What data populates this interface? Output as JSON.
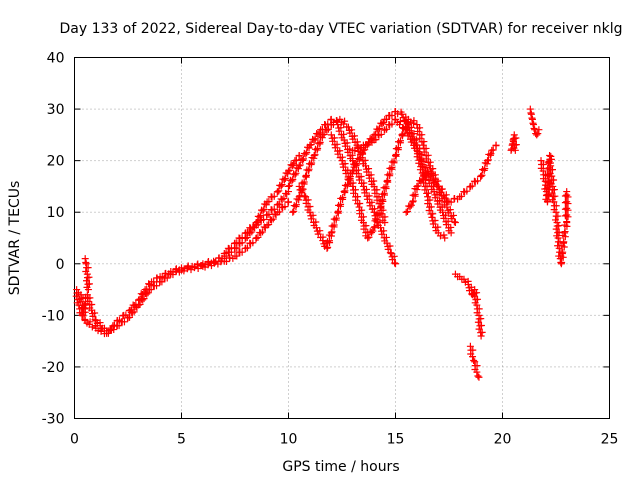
{
  "chart_data": {
    "type": "scatter",
    "title": "Day 133 of 2022, Sidereal Day-to-day VTEC variation (SDTVAR) for receiver nklg",
    "xlabel": "GPS time / hours",
    "ylabel": "SDTVAR / TECUs",
    "xlim": [
      0,
      25
    ],
    "ylim": [
      -30,
      40
    ],
    "xticks": [
      0,
      5,
      10,
      15,
      20,
      25
    ],
    "yticks": [
      -30,
      -20,
      -10,
      0,
      10,
      20,
      30,
      40
    ],
    "grid": true,
    "marker": "+",
    "color": "#ff0000",
    "series": [
      {
        "name": "main-trace",
        "points": [
          [
            0.1,
            -5
          ],
          [
            0.2,
            -8
          ],
          [
            0.35,
            -10
          ],
          [
            0.5,
            -8
          ],
          [
            0.6,
            -6
          ],
          [
            0.8,
            -9
          ],
          [
            1.0,
            -11
          ],
          [
            1.2,
            -12
          ],
          [
            1.4,
            -12.5
          ],
          [
            1.6,
            -13
          ],
          [
            1.8,
            -12
          ],
          [
            2.0,
            -11
          ],
          [
            2.3,
            -10
          ],
          [
            2.6,
            -9
          ],
          [
            3.0,
            -7
          ],
          [
            3.3,
            -5
          ],
          [
            3.6,
            -3.5
          ],
          [
            4.0,
            -2.5
          ],
          [
            4.5,
            -1.5
          ],
          [
            5.0,
            -0.8
          ],
          [
            5.5,
            -0.5
          ],
          [
            6.0,
            0
          ],
          [
            6.5,
            0.5
          ],
          [
            7.0,
            1.5
          ],
          [
            7.5,
            3
          ],
          [
            8.0,
            5
          ],
          [
            8.5,
            7.5
          ],
          [
            9.0,
            9.5
          ],
          [
            9.5,
            11.5
          ],
          [
            10.0,
            14
          ]
        ]
      },
      {
        "name": "lower-edge",
        "points": [
          [
            0.3,
            -6
          ],
          [
            0.5,
            -11
          ],
          [
            1.0,
            -12.5
          ],
          [
            1.5,
            -13.5
          ],
          [
            2.0,
            -12
          ],
          [
            2.5,
            -10.5
          ],
          [
            3.0,
            -8
          ],
          [
            3.5,
            -5
          ],
          [
            4.0,
            -3.5
          ],
          [
            4.5,
            -2
          ],
          [
            5.0,
            -1.2
          ],
          [
            6.0,
            -0.5
          ],
          [
            7.0,
            0.5
          ],
          [
            7.5,
            1.5
          ],
          [
            8.0,
            3
          ],
          [
            8.5,
            5
          ],
          [
            9.0,
            7.5
          ],
          [
            9.5,
            10
          ],
          [
            10.0,
            12
          ]
        ]
      },
      {
        "name": "spike-start",
        "points": [
          [
            0.5,
            1
          ],
          [
            0.55,
            0
          ],
          [
            0.6,
            -2
          ],
          [
            0.65,
            -5
          ]
        ]
      },
      {
        "name": "upper-edge",
        "points": [
          [
            7.0,
            2
          ],
          [
            7.5,
            4
          ],
          [
            8.0,
            6
          ],
          [
            8.5,
            8
          ],
          [
            9.0,
            12
          ],
          [
            9.5,
            14
          ],
          [
            10.0,
            18
          ],
          [
            10.3,
            20
          ],
          [
            10.5,
            21
          ]
        ]
      },
      {
        "name": "arc-1",
        "points": [
          [
            10.0,
            15
          ],
          [
            10.5,
            19
          ],
          [
            11.0,
            23
          ],
          [
            11.5,
            26
          ],
          [
            12.0,
            28
          ],
          [
            12.3,
            27
          ],
          [
            12.6,
            24
          ],
          [
            13.0,
            20
          ],
          [
            13.5,
            15
          ],
          [
            14.0,
            10
          ],
          [
            14.3,
            7
          ],
          [
            14.6,
            4
          ],
          [
            14.8,
            2
          ],
          [
            15.0,
            0
          ]
        ]
      },
      {
        "name": "arc-2",
        "points": [
          [
            10.2,
            10
          ],
          [
            10.5,
            13
          ],
          [
            10.8,
            17
          ],
          [
            11.2,
            21
          ],
          [
            11.6,
            25
          ],
          [
            12.0,
            27
          ],
          [
            12.4,
            28
          ],
          [
            12.8,
            26.5
          ],
          [
            13.2,
            23
          ],
          [
            13.6,
            19
          ],
          [
            14.0,
            15
          ],
          [
            14.3,
            11
          ],
          [
            14.5,
            8
          ]
        ]
      },
      {
        "name": "arc-3",
        "points": [
          [
            10.5,
            15
          ],
          [
            10.8,
            13
          ],
          [
            11.0,
            10
          ],
          [
            11.3,
            7
          ],
          [
            11.6,
            4.5
          ],
          [
            11.8,
            3
          ],
          [
            12.0,
            6
          ],
          [
            12.3,
            10
          ],
          [
            12.6,
            14
          ],
          [
            13.0,
            18
          ],
          [
            13.5,
            22
          ],
          [
            14.0,
            25
          ],
          [
            14.5,
            28
          ],
          [
            15.0,
            29.5
          ],
          [
            15.3,
            29
          ],
          [
            15.6,
            27
          ],
          [
            16.0,
            23
          ],
          [
            16.4,
            18
          ],
          [
            16.8,
            14
          ],
          [
            17.2,
            10
          ],
          [
            17.6,
            6
          ]
        ]
      },
      {
        "name": "arc-4",
        "points": [
          [
            12.0,
            25
          ],
          [
            12.5,
            20
          ],
          [
            13.0,
            15
          ],
          [
            13.3,
            11
          ],
          [
            13.5,
            8
          ],
          [
            13.7,
            5
          ],
          [
            14.0,
            7
          ],
          [
            14.3,
            11
          ],
          [
            14.6,
            16
          ],
          [
            15.0,
            21
          ],
          [
            15.3,
            25
          ],
          [
            15.6,
            28
          ],
          [
            16.0,
            27
          ],
          [
            16.3,
            23
          ],
          [
            16.6,
            19
          ],
          [
            17.0,
            15
          ],
          [
            17.4,
            11
          ],
          [
            17.8,
            8
          ]
        ]
      },
      {
        "name": "arc-5",
        "points": [
          [
            13.0,
            22
          ],
          [
            13.5,
            23
          ],
          [
            14.0,
            24
          ],
          [
            14.5,
            26
          ],
          [
            15.0,
            28
          ],
          [
            15.5,
            26
          ],
          [
            16.0,
            22
          ],
          [
            16.3,
            17
          ],
          [
            16.5,
            13
          ],
          [
            16.7,
            9
          ],
          [
            17.0,
            6
          ],
          [
            17.3,
            5
          ]
        ]
      },
      {
        "name": "arc-6",
        "points": [
          [
            15.5,
            10
          ],
          [
            15.8,
            12
          ],
          [
            16.0,
            15
          ],
          [
            16.5,
            18
          ],
          [
            17.0,
            15
          ],
          [
            17.5,
            12
          ],
          [
            18.0,
            13
          ],
          [
            18.5,
            15
          ],
          [
            19.0,
            17
          ],
          [
            19.3,
            20
          ],
          [
            19.5,
            22
          ],
          [
            19.7,
            23
          ]
        ]
      },
      {
        "name": "tail-low",
        "points": [
          [
            17.8,
            -2
          ],
          [
            18.0,
            -2.5
          ],
          [
            18.2,
            -3
          ],
          [
            18.4,
            -4
          ],
          [
            18.6,
            -6
          ],
          [
            18.7,
            -5
          ],
          [
            18.8,
            -8
          ],
          [
            18.9,
            -10
          ],
          [
            19.0,
            -14
          ]
        ]
      },
      {
        "name": "drop",
        "points": [
          [
            18.5,
            -16
          ],
          [
            18.6,
            -18
          ],
          [
            18.7,
            -19
          ],
          [
            18.8,
            -21
          ],
          [
            18.9,
            -22
          ]
        ]
      },
      {
        "name": "late-1",
        "points": [
          [
            20.4,
            22
          ],
          [
            20.45,
            23
          ],
          [
            20.5,
            24
          ],
          [
            20.55,
            25
          ],
          [
            20.6,
            22
          ]
        ]
      },
      {
        "name": "late-2",
        "points": [
          [
            21.3,
            30
          ],
          [
            21.35,
            29
          ],
          [
            21.4,
            28
          ],
          [
            21.45,
            27
          ],
          [
            21.5,
            26
          ],
          [
            21.6,
            25
          ],
          [
            21.7,
            26
          ]
        ]
      },
      {
        "name": "late-3",
        "points": [
          [
            21.8,
            20
          ],
          [
            21.9,
            18
          ],
          [
            22.0,
            16
          ],
          [
            22.05,
            14
          ],
          [
            22.1,
            12
          ],
          [
            22.2,
            21
          ],
          [
            22.25,
            19
          ],
          [
            22.3,
            17
          ],
          [
            22.35,
            15
          ],
          [
            22.4,
            12
          ],
          [
            22.5,
            10
          ],
          [
            22.55,
            8
          ],
          [
            22.6,
            5
          ],
          [
            22.65,
            3
          ],
          [
            22.7,
            1
          ],
          [
            22.75,
            0
          ],
          [
            22.8,
            2
          ],
          [
            22.85,
            4
          ],
          [
            22.9,
            6
          ],
          [
            23.0,
            8
          ],
          [
            23.0,
            14
          ]
        ]
      }
    ]
  }
}
